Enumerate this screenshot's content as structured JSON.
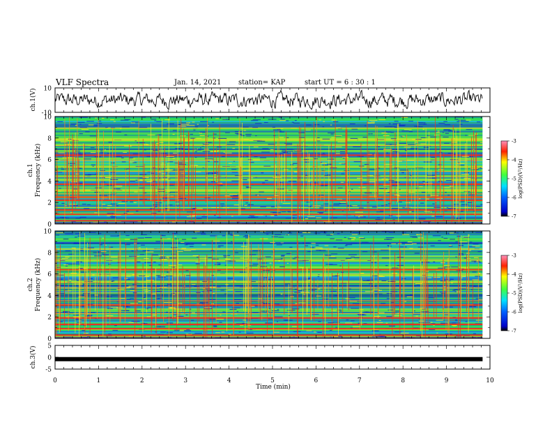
{
  "header": {
    "title": "VLF Spectra",
    "date": "Jan. 14, 2021",
    "station": "station= KAP",
    "start": "start  UT =  6 : 30 : 1"
  },
  "chart_data": [
    {
      "type": "line",
      "panel": "ch1-waveform",
      "ylabel": "ch.1(V)",
      "ylim": [
        -10,
        10
      ],
      "yticks": [
        "10",
        "-10"
      ],
      "xlim": [
        0,
        10
      ],
      "data_end_min": 9.83,
      "line_color": "#000000"
    },
    {
      "type": "heatmap",
      "panel": "ch1-spectrogram",
      "ylabel": "ch.1\nFrequency (kHz)",
      "ylabel_lines": [
        "ch.1",
        "Frequency (kHz)"
      ],
      "ylim": [
        0,
        10
      ],
      "yticks": [
        "0",
        "2",
        "4",
        "6",
        "8",
        "10"
      ],
      "xlim": [
        0,
        10
      ],
      "data_end_min": 9.83,
      "colorbar": {
        "label": "log(PSD)(V²/Hz)",
        "range": [
          -7,
          -3
        ],
        "ticks": [
          "-3",
          "-4",
          "-5",
          "-6",
          "-7"
        ]
      },
      "strong_bands_khz": [
        0.3,
        0.9,
        1.3,
        2.2,
        2.5,
        3.7,
        6.4
      ],
      "weak_bands_khz": [
        2.8,
        3.1,
        4.4,
        4.9,
        5.3,
        5.9,
        7.3,
        7.8,
        8.9
      ]
    },
    {
      "type": "heatmap",
      "panel": "ch2-spectrogram",
      "ylabel": "ch.2\nFrequency (kHz)",
      "ylabel_lines": [
        "ch.2",
        "Frequency (kHz)"
      ],
      "ylim": [
        0,
        10
      ],
      "yticks": [
        "0",
        "2",
        "4",
        "6",
        "8",
        "10"
      ],
      "xlim": [
        0,
        10
      ],
      "data_end_min": 9.83,
      "colorbar": {
        "label": "log(PSD)(V²/Hz)",
        "range": [
          -7,
          -3
        ],
        "ticks": [
          "-3",
          "-4",
          "-5",
          "-6",
          "-7"
        ]
      },
      "strong_bands_khz": [
        0.3,
        0.9,
        1.3,
        1.9,
        3.1,
        6.4
      ],
      "weak_bands_khz": [
        2.3,
        3.5,
        4.7,
        5.2,
        6.0,
        7.3,
        8.3
      ]
    },
    {
      "type": "line",
      "panel": "ch3-waveform",
      "ylabel": "ch.3(V)",
      "ylim": [
        -5,
        5
      ],
      "yticks": [
        "5",
        "0",
        "-5"
      ],
      "xlim": [
        0,
        10
      ],
      "data_end_min": 9.83,
      "value": -0.8,
      "line_color": "#000000"
    }
  ],
  "xaxis": {
    "label": "Time  (min)",
    "ticks": [
      "0",
      "1",
      "2",
      "3",
      "4",
      "5",
      "6",
      "7",
      "8",
      "9",
      "10"
    ]
  }
}
